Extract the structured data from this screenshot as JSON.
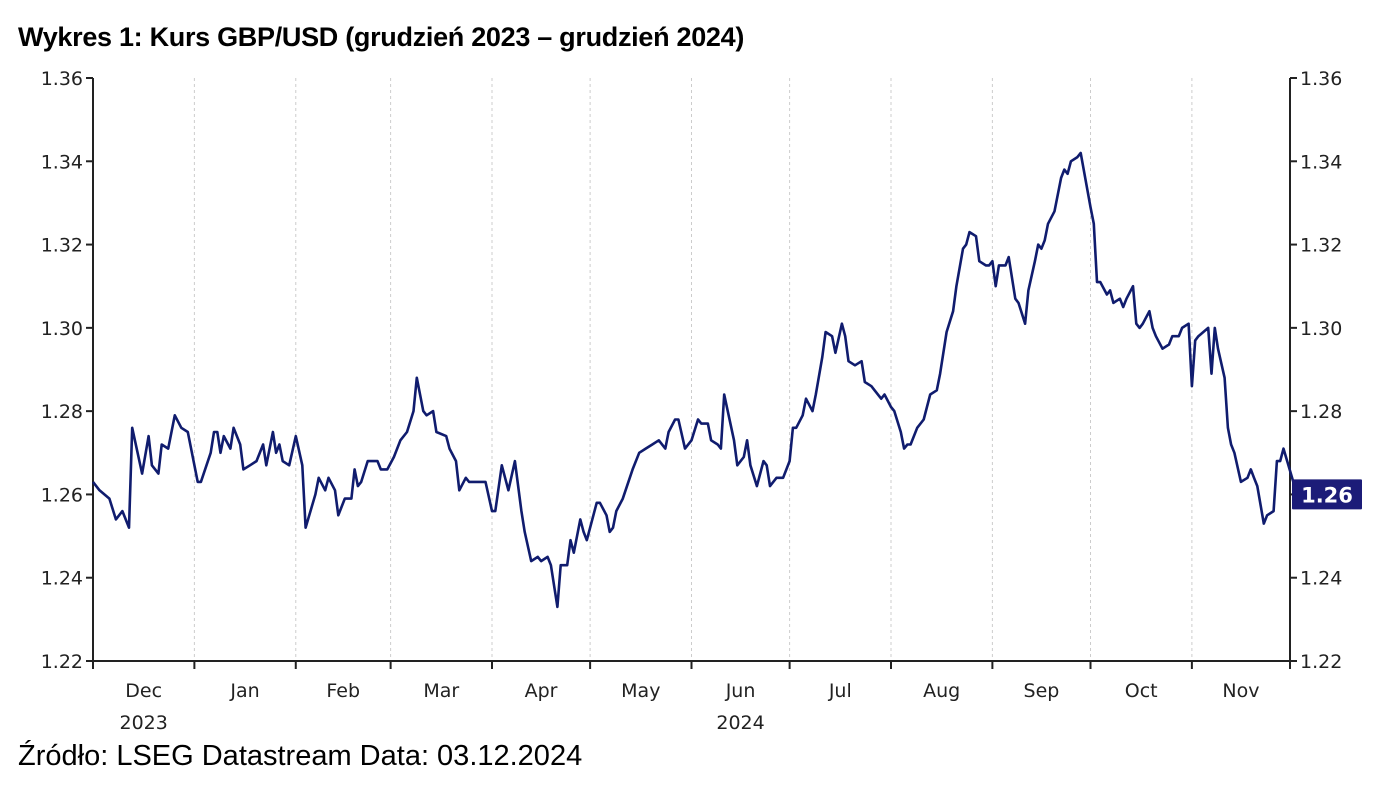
{
  "title": "Wykres 1: Kurs GBP/USD (grudzień 2023 – grudzień 2024)",
  "source": "Źródło: LSEG Datastream Data: 03.12.2024",
  "colors": {
    "line": "#101c6e",
    "last_value_box": "#1c1c78",
    "axis": "#222222",
    "grid": "#cccccc"
  },
  "chart_data": {
    "type": "line",
    "title": "Wykres 1: Kurs GBP/USD (grudzień 2023 – grudzień 2024)",
    "xlabel": "",
    "ylabel": "",
    "ylim": [
      1.22,
      1.36
    ],
    "xlim": [
      "2023-12-01",
      "2024-12-03"
    ],
    "y_ticks": [
      "1.22",
      "1.24",
      "1.26",
      "1.28",
      "1.30",
      "1.32",
      "1.34",
      "1.36"
    ],
    "y_axis_sides": [
      "left",
      "right"
    ],
    "x_ticks": [
      {
        "label": "Dec",
        "year": "2023"
      },
      {
        "label": "Jan",
        "year": ""
      },
      {
        "label": "Feb",
        "year": ""
      },
      {
        "label": "Mar",
        "year": ""
      },
      {
        "label": "Apr",
        "year": ""
      },
      {
        "label": "May",
        "year": ""
      },
      {
        "label": "Jun",
        "year": "2024"
      },
      {
        "label": "Jul",
        "year": ""
      },
      {
        "label": "Aug",
        "year": ""
      },
      {
        "label": "Sep",
        "year": ""
      },
      {
        "label": "Oct",
        "year": ""
      },
      {
        "label": "Nov",
        "year": ""
      }
    ],
    "grid": "vertical dotted at month starts",
    "last_value_label": "1.26",
    "series": [
      {
        "x": [
          "2023-12-01",
          "2023-12-03",
          "2023-12-06",
          "2023-12-08",
          "2023-12-10",
          "2023-12-12",
          "2023-12-13",
          "2023-12-16",
          "2023-12-18",
          "2023-12-19",
          "2023-12-21",
          "2023-12-22",
          "2023-12-24",
          "2023-12-26",
          "2023-12-28",
          "2023-12-30",
          "2024-01-02",
          "2024-01-03",
          "2024-01-06",
          "2024-01-07",
          "2024-01-08",
          "2024-01-09",
          "2024-01-10",
          "2024-01-12",
          "2024-01-13",
          "2024-01-15",
          "2024-01-16",
          "2024-01-18",
          "2024-01-20",
          "2024-01-22",
          "2024-01-23",
          "2024-01-25",
          "2024-01-26",
          "2024-01-27",
          "2024-01-28",
          "2024-01-30",
          "2024-02-01",
          "2024-02-03",
          "2024-02-04",
          "2024-02-07",
          "2024-02-08",
          "2024-02-10",
          "2024-02-11",
          "2024-02-13",
          "2024-02-14",
          "2024-02-16",
          "2024-02-18",
          "2024-02-19",
          "2024-02-20",
          "2024-02-21",
          "2024-02-23",
          "2024-02-25",
          "2024-02-26",
          "2024-02-27",
          "2024-02-29",
          "2024-03-02",
          "2024-03-04",
          "2024-03-06",
          "2024-03-08",
          "2024-03-09",
          "2024-03-11",
          "2024-03-12",
          "2024-03-14",
          "2024-03-15",
          "2024-03-18",
          "2024-03-19",
          "2024-03-21",
          "2024-03-22",
          "2024-03-24",
          "2024-03-25",
          "2024-03-27",
          "2024-03-30",
          "2024-04-01",
          "2024-04-02",
          "2024-04-04",
          "2024-04-06",
          "2024-04-08",
          "2024-04-10",
          "2024-04-11",
          "2024-04-13",
          "2024-04-15",
          "2024-04-16",
          "2024-04-18",
          "2024-04-19",
          "2024-04-21",
          "2024-04-22",
          "2024-04-24",
          "2024-04-25",
          "2024-04-26",
          "2024-04-28",
          "2024-04-29",
          "2024-04-30",
          "2024-05-03",
          "2024-05-04",
          "2024-05-06",
          "2024-05-07",
          "2024-05-08",
          "2024-05-09",
          "2024-05-11",
          "2024-05-14",
          "2024-05-16",
          "2024-05-18",
          "2024-05-20",
          "2024-05-22",
          "2024-05-24",
          "2024-05-25",
          "2024-05-27",
          "2024-05-28",
          "2024-05-30",
          "2024-06-01",
          "2024-06-03",
          "2024-06-04",
          "2024-06-06",
          "2024-06-07",
          "2024-06-09",
          "2024-06-10",
          "2024-06-11",
          "2024-06-14",
          "2024-06-15",
          "2024-06-17",
          "2024-06-18",
          "2024-06-19",
          "2024-06-21",
          "2024-06-23",
          "2024-06-24",
          "2024-06-25",
          "2024-06-27",
          "2024-06-28",
          "2024-06-29",
          "2024-07-01",
          "2024-07-02",
          "2024-07-03",
          "2024-07-05",
          "2024-07-06",
          "2024-07-08",
          "2024-07-09",
          "2024-07-11",
          "2024-07-12",
          "2024-07-14",
          "2024-07-15",
          "2024-07-17",
          "2024-07-18",
          "2024-07-19",
          "2024-07-21",
          "2024-07-23",
          "2024-07-24",
          "2024-07-26",
          "2024-07-27",
          "2024-07-29",
          "2024-07-30",
          "2024-08-01",
          "2024-08-02",
          "2024-08-04",
          "2024-08-05",
          "2024-08-06",
          "2024-08-07",
          "2024-08-09",
          "2024-08-11",
          "2024-08-13",
          "2024-08-15",
          "2024-08-16",
          "2024-08-18",
          "2024-08-20",
          "2024-08-21",
          "2024-08-23",
          "2024-08-24",
          "2024-08-25",
          "2024-08-27",
          "2024-08-28",
          "2024-08-30",
          "2024-08-31",
          "2024-09-01",
          "2024-09-02",
          "2024-09-03",
          "2024-09-05",
          "2024-09-06",
          "2024-09-08",
          "2024-09-09",
          "2024-09-11",
          "2024-09-12",
          "2024-09-14",
          "2024-09-15",
          "2024-09-16",
          "2024-09-17",
          "2024-09-18",
          "2024-09-20",
          "2024-09-22",
          "2024-09-23",
          "2024-09-24",
          "2024-09-25",
          "2024-09-27",
          "2024-09-28",
          "2024-10-01",
          "2024-10-02",
          "2024-10-03",
          "2024-10-04",
          "2024-10-06",
          "2024-10-07",
          "2024-10-08",
          "2024-10-10",
          "2024-10-11",
          "2024-10-12",
          "2024-10-14",
          "2024-10-15",
          "2024-10-16",
          "2024-10-17",
          "2024-10-19",
          "2024-10-20",
          "2024-10-21",
          "2024-10-23",
          "2024-10-25",
          "2024-10-26",
          "2024-10-28",
          "2024-10-29",
          "2024-10-31",
          "2024-11-01",
          "2024-11-02",
          "2024-11-03",
          "2024-11-06",
          "2024-11-07",
          "2024-11-08",
          "2024-11-09",
          "2024-11-11",
          "2024-11-12",
          "2024-11-13",
          "2024-11-14",
          "2024-11-16",
          "2024-11-18",
          "2024-11-19",
          "2024-11-20",
          "2024-11-21",
          "2024-11-23",
          "2024-11-24",
          "2024-11-26",
          "2024-11-27",
          "2024-11-28",
          "2024-11-29",
          "2024-12-02"
        ],
        "values": [
          1.263,
          1.261,
          1.259,
          1.254,
          1.256,
          1.252,
          1.276,
          1.265,
          1.274,
          1.267,
          1.265,
          1.272,
          1.271,
          1.279,
          1.276,
          1.275,
          1.263,
          1.263,
          1.27,
          1.275,
          1.275,
          1.27,
          1.274,
          1.271,
          1.276,
          1.272,
          1.266,
          1.267,
          1.268,
          1.272,
          1.267,
          1.275,
          1.27,
          1.272,
          1.268,
          1.267,
          1.274,
          1.267,
          1.252,
          1.26,
          1.264,
          1.261,
          1.264,
          1.261,
          1.255,
          1.259,
          1.259,
          1.266,
          1.262,
          1.263,
          1.268,
          1.268,
          1.268,
          1.266,
          1.266,
          1.269,
          1.273,
          1.275,
          1.28,
          1.288,
          1.28,
          1.279,
          1.28,
          1.275,
          1.274,
          1.271,
          1.268,
          1.261,
          1.264,
          1.263,
          1.263,
          1.263,
          1.256,
          1.256,
          1.267,
          1.261,
          1.268,
          1.256,
          1.251,
          1.244,
          1.245,
          1.244,
          1.245,
          1.243,
          1.233,
          1.243,
          1.243,
          1.249,
          1.246,
          1.254,
          1.251,
          1.249,
          1.258,
          1.258,
          1.255,
          1.251,
          1.252,
          1.256,
          1.259,
          1.266,
          1.27,
          1.271,
          1.272,
          1.273,
          1.271,
          1.275,
          1.278,
          1.278,
          1.271,
          1.273,
          1.278,
          1.277,
          1.277,
          1.273,
          1.272,
          1.271,
          1.284,
          1.273,
          1.267,
          1.269,
          1.273,
          1.267,
          1.262,
          1.268,
          1.267,
          1.262,
          1.264,
          1.264,
          1.264,
          1.268,
          1.276,
          1.276,
          1.279,
          1.283,
          1.28,
          1.284,
          1.293,
          1.299,
          1.298,
          1.294,
          1.301,
          1.298,
          1.292,
          1.291,
          1.292,
          1.287,
          1.286,
          1.285,
          1.283,
          1.284,
          1.281,
          1.28,
          1.275,
          1.271,
          1.272,
          1.272,
          1.276,
          1.278,
          1.284,
          1.285,
          1.289,
          1.299,
          1.304,
          1.31,
          1.319,
          1.32,
          1.323,
          1.322,
          1.316,
          1.315,
          1.315,
          1.316,
          1.31,
          1.315,
          1.315,
          1.317,
          1.307,
          1.306,
          1.301,
          1.309,
          1.316,
          1.32,
          1.319,
          1.321,
          1.325,
          1.328,
          1.336,
          1.338,
          1.337,
          1.34,
          1.341,
          1.342,
          1.329,
          1.325,
          1.311,
          1.311,
          1.308,
          1.309,
          1.306,
          1.307,
          1.305,
          1.307,
          1.31,
          1.301,
          1.3,
          1.301,
          1.304,
          1.3,
          1.298,
          1.295,
          1.296,
          1.298,
          1.298,
          1.3,
          1.301,
          1.286,
          1.297,
          1.298,
          1.3,
          1.289,
          1.3,
          1.295,
          1.288,
          1.276,
          1.272,
          1.27,
          1.263,
          1.264,
          1.266,
          1.264,
          1.262,
          1.253,
          1.255,
          1.256,
          1.268,
          1.268,
          1.271,
          1.263
        ]
      }
    ]
  }
}
